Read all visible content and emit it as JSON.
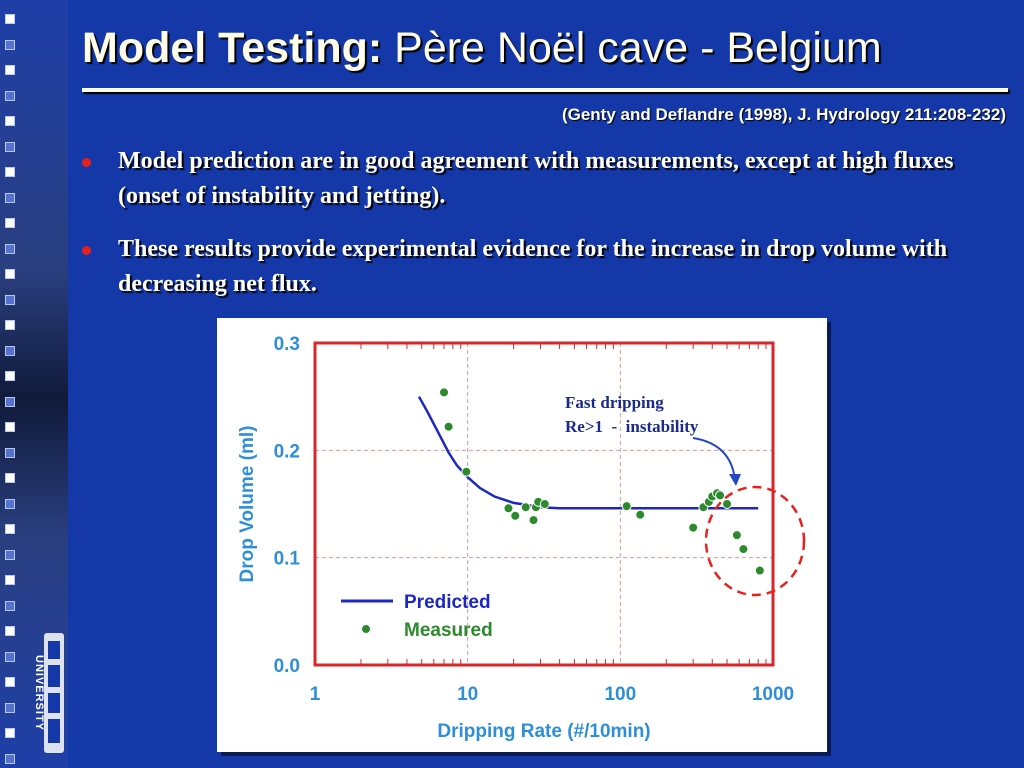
{
  "slide": {
    "title_bold": "Model Testing:",
    "title_rest": " Père Noël cave - Belgium",
    "citation": "(Genty and Deflandre (1998), J. Hydrology 211:208-232)",
    "bullets": [
      "Model prediction are in good agreement with measurements, except at high fluxes (onset of instability and jetting).",
      "These results provide experimental evidence for the increase in drop volume with decreasing net flux."
    ],
    "logo_text": "UNIVERSITY"
  },
  "colors": {
    "background": "#1438a8",
    "title": "#fffde8",
    "bullet_dot": "#e8201c",
    "axis_text": "#2e8fd6",
    "frame": "#d8262a",
    "predicted": "#1c28c0",
    "measured": "#2c8a2c",
    "annotation": "#1a2a8a"
  },
  "chart_data": {
    "type": "scatter",
    "xlabel": "Dripping Rate (#/10min)",
    "ylabel": "Drop Volume (ml)",
    "xscale": "log",
    "xlim": [
      1,
      1000
    ],
    "ylim": [
      0,
      0.3
    ],
    "xticks": [
      "1",
      "10",
      "100",
      "1000"
    ],
    "yticks": [
      "0.0",
      "0.1",
      "0.2",
      "0.3"
    ],
    "grid": true,
    "legend_position": "bottom-left",
    "series": [
      {
        "name": "Predicted",
        "kind": "line",
        "x": [
          4.8,
          5.5,
          6.5,
          7.5,
          8.5,
          10,
          12,
          15,
          20,
          25,
          30,
          40,
          60,
          100,
          200,
          400,
          800
        ],
        "y": [
          0.25,
          0.235,
          0.215,
          0.198,
          0.186,
          0.175,
          0.165,
          0.157,
          0.151,
          0.149,
          0.147,
          0.146,
          0.146,
          0.146,
          0.146,
          0.146,
          0.146
        ]
      },
      {
        "name": "Measured",
        "kind": "points",
        "x": [
          7,
          7.5,
          9.8,
          18.5,
          20.5,
          24,
          27,
          28,
          29,
          32,
          110,
          135,
          300,
          350,
          380,
          400,
          430,
          450,
          500,
          580,
          640,
          820
        ],
        "y": [
          0.254,
          0.222,
          0.18,
          0.146,
          0.139,
          0.147,
          0.135,
          0.147,
          0.152,
          0.15,
          0.148,
          0.14,
          0.128,
          0.147,
          0.152,
          0.157,
          0.16,
          0.158,
          0.15,
          0.121,
          0.108,
          0.088
        ]
      }
    ],
    "annotation": {
      "lines": [
        "Fast dripping",
        "Re>1  -  instability"
      ]
    }
  }
}
